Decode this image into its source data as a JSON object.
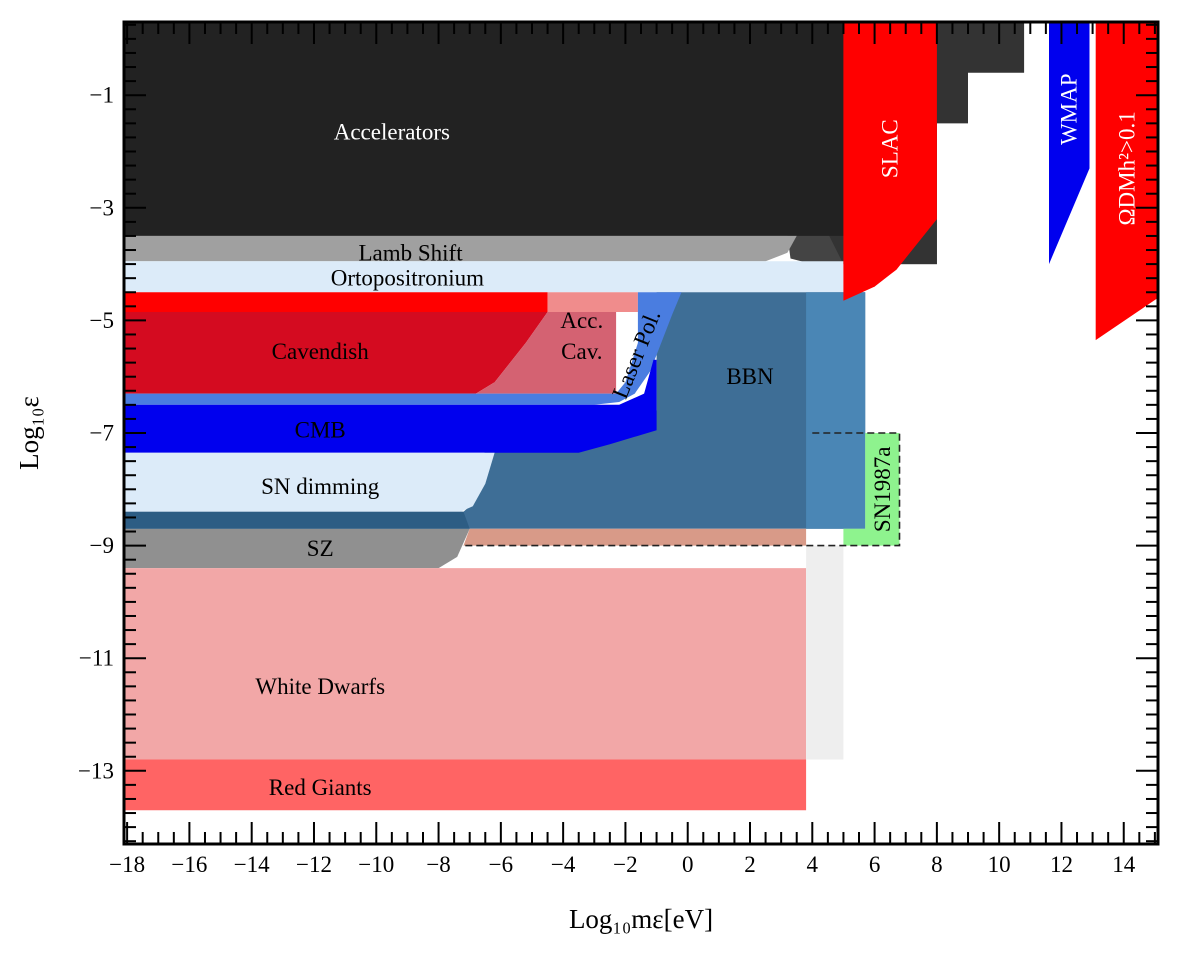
{
  "chart_data": {
    "type": "area",
    "title": "",
    "xlabel": "Log₁₀mε[eV]",
    "ylabel": "Log₁₀ε",
    "xlim": [
      -18.1,
      15.1
    ],
    "ylim": [
      -14.3,
      0.3
    ],
    "grid": false,
    "x_ticks": [
      {
        "value": -18,
        "label": "−18"
      },
      {
        "value": -16,
        "label": "−16"
      },
      {
        "value": -14,
        "label": "−14"
      },
      {
        "value": -12,
        "label": "−12"
      },
      {
        "value": -10,
        "label": "−10"
      },
      {
        "value": -8,
        "label": "−8"
      },
      {
        "value": -6,
        "label": "−6"
      },
      {
        "value": -4,
        "label": "−4"
      },
      {
        "value": -2,
        "label": "−2"
      },
      {
        "value": 0,
        "label": "0"
      },
      {
        "value": 2,
        "label": "2"
      },
      {
        "value": 4,
        "label": "4"
      },
      {
        "value": 6,
        "label": "6"
      },
      {
        "value": 8,
        "label": "8"
      },
      {
        "value": 10,
        "label": "10"
      },
      {
        "value": 12,
        "label": "12"
      },
      {
        "value": 14,
        "label": "14"
      }
    ],
    "y_ticks": [
      {
        "value": -1,
        "label": "−1"
      },
      {
        "value": -3,
        "label": "−3"
      },
      {
        "value": -5,
        "label": "−5"
      },
      {
        "value": -7,
        "label": "−7"
      },
      {
        "value": -9,
        "label": "−9"
      },
      {
        "value": -11,
        "label": "−11"
      },
      {
        "value": -13,
        "label": "−13"
      }
    ],
    "regions": [
      {
        "name": "Accelerators",
        "color": "#444444",
        "opacity": 1,
        "points": [
          [
            -18.1,
            0.3
          ],
          [
            9.0,
            0.3
          ],
          [
            9.0,
            -1.5
          ],
          [
            8.0,
            -1.5
          ],
          [
            8.0,
            -4.0
          ],
          [
            4.0,
            -4.0
          ],
          [
            3.3,
            -3.9
          ],
          [
            3.2,
            -3.5
          ],
          [
            -18.1,
            -3.5
          ]
        ]
      },
      {
        "name": "Accelerators",
        "color": "#333333",
        "opacity": 1,
        "points": [
          [
            -18.1,
            0.3
          ],
          [
            10.8,
            0.3
          ],
          [
            10.8,
            -0.6
          ],
          [
            9.0,
            -0.6
          ],
          [
            9.0,
            -1.5
          ],
          [
            8.0,
            -1.5
          ],
          [
            8.0,
            -4.0
          ],
          [
            5.0,
            -4.0
          ],
          [
            4.0,
            -2.9
          ],
          [
            3.7,
            -2.5
          ],
          [
            3.7,
            -2.0
          ],
          [
            -18.1,
            -2.0
          ]
        ]
      },
      {
        "name": "Accelerators",
        "color": "#222222",
        "opacity": 1,
        "points": [
          [
            -18.1,
            0.3
          ],
          [
            5.0,
            0.3
          ],
          [
            5.0,
            -3.5
          ],
          [
            -18.1,
            -3.5
          ]
        ]
      },
      {
        "name": "Lamb Shift",
        "color": "#a0a0a0",
        "opacity": 1,
        "points": [
          [
            -18.1,
            -3.5
          ],
          [
            3.5,
            -3.5
          ],
          [
            3.2,
            -3.8
          ],
          [
            2.5,
            -3.95
          ],
          [
            0,
            -3.95
          ],
          [
            -18.1,
            -3.95
          ]
        ]
      },
      {
        "name": "Ortopositronium",
        "color": "#dcebf9",
        "opacity": 1,
        "points": [
          [
            -18.1,
            -3.95
          ],
          [
            5.0,
            -3.95
          ],
          [
            5.0,
            -4.5
          ],
          [
            -18.1,
            -4.5
          ]
        ]
      },
      {
        "name": "BBN",
        "color": "#3e6e96",
        "opacity": 1,
        "points": [
          [
            -1.0,
            -4.5
          ],
          [
            5.7,
            -4.5
          ],
          [
            5.7,
            -8.7
          ],
          [
            -18.1,
            -8.7
          ],
          [
            -18.1,
            -8.4
          ],
          [
            -7.2,
            -8.4
          ],
          [
            -7.0,
            -8.3
          ],
          [
            -6.5,
            -7.3
          ],
          [
            -18.1,
            -7.3
          ],
          [
            -18.1,
            -6.6
          ],
          [
            -1.0,
            -6.6
          ]
        ]
      },
      {
        "name": "BBN",
        "color": "#4a86b5",
        "opacity": 1,
        "points": [
          [
            3.8,
            -4.5
          ],
          [
            5.7,
            -4.5
          ],
          [
            5.7,
            -8.7
          ],
          [
            3.8,
            -8.7
          ]
        ]
      },
      {
        "name": "Cavendish",
        "color": "#ff0000",
        "opacity": 1,
        "points": [
          [
            -18.1,
            -4.5
          ],
          [
            -4.5,
            -4.5
          ],
          [
            -4.5,
            -4.85
          ],
          [
            -18.1,
            -4.85
          ]
        ]
      },
      {
        "name": "Cavendish",
        "color": "#d40b20",
        "opacity": 1,
        "points": [
          [
            -18.1,
            -4.85
          ],
          [
            -4.5,
            -4.85
          ],
          [
            -5.2,
            -5.4
          ],
          [
            -6.2,
            -6.1
          ],
          [
            -6.8,
            -6.3
          ],
          [
            -18.1,
            -6.3
          ]
        ]
      },
      {
        "name": "Acc. Cav.",
        "color": "#d46272",
        "opacity": 1,
        "points": [
          [
            -4.5,
            -4.85
          ],
          [
            -2.3,
            -4.85
          ],
          [
            -2.3,
            -6.3
          ],
          [
            -6.8,
            -6.3
          ],
          [
            -6.2,
            -6.1
          ],
          [
            -5.2,
            -5.4
          ]
        ]
      },
      {
        "name": "Acc. Cav.",
        "color": "#f08c8c",
        "opacity": 1,
        "points": [
          [
            -4.5,
            -4.5
          ],
          [
            -1.6,
            -4.5
          ],
          [
            -1.6,
            -4.85
          ],
          [
            -4.5,
            -4.85
          ]
        ]
      },
      {
        "name": "Laser Pol.",
        "color": "#4a7de0",
        "opacity": 1,
        "points": [
          [
            -18.1,
            -6.3
          ],
          [
            -6.8,
            -6.3
          ],
          [
            -2.3,
            -6.3
          ],
          [
            -2.0,
            -6.1
          ],
          [
            -1.6,
            -5.4
          ],
          [
            -1.6,
            -4.5
          ],
          [
            -0.2,
            -4.5
          ],
          [
            -0.5,
            -4.9
          ],
          [
            -1.2,
            -5.9
          ],
          [
            -1.7,
            -6.3
          ],
          [
            -2.2,
            -6.45
          ],
          [
            -3.0,
            -6.5
          ],
          [
            -18.1,
            -6.5
          ]
        ]
      },
      {
        "name": "CMB",
        "color": "#0000ee",
        "opacity": 1,
        "points": [
          [
            -18.1,
            -6.5
          ],
          [
            -2.2,
            -6.5
          ],
          [
            -1.4,
            -6.3
          ],
          [
            -1.1,
            -5.7
          ],
          [
            -1.0,
            -5.7
          ],
          [
            -1.0,
            -6.95
          ],
          [
            -2.5,
            -7.2
          ],
          [
            -3.5,
            -7.35
          ],
          [
            -18.1,
            -7.35
          ]
        ]
      },
      {
        "name": "SN dimming",
        "color": "#dcebf9",
        "opacity": 1,
        "points": [
          [
            -18.1,
            -7.35
          ],
          [
            -6.2,
            -7.35
          ],
          [
            -6.5,
            -7.9
          ],
          [
            -6.9,
            -8.3
          ],
          [
            -7.3,
            -8.4
          ],
          [
            -18.1,
            -8.4
          ]
        ]
      },
      {
        "name": "SZ",
        "color": "#909090",
        "opacity": 1,
        "points": [
          [
            -18.1,
            -8.7
          ],
          [
            -7.0,
            -8.7
          ],
          [
            -7.4,
            -9.2
          ],
          [
            -8.0,
            -9.4
          ],
          [
            -18.1,
            -9.4
          ]
        ]
      },
      {
        "name": "SZ",
        "color": "#2d5d84",
        "opacity": 1,
        "points": [
          [
            -18.1,
            -8.4
          ],
          [
            -7.2,
            -8.4
          ],
          [
            -7.0,
            -8.7
          ],
          [
            -18.1,
            -8.7
          ]
        ]
      },
      {
        "name": "White Dwarfs",
        "color": "#f2a7a7",
        "opacity": 1,
        "points": [
          [
            -18.1,
            -9.4
          ],
          [
            3.8,
            -9.4
          ],
          [
            3.8,
            -12.8
          ],
          [
            -18.1,
            -12.8
          ]
        ]
      },
      {
        "name": "White Dwarfs",
        "color": "#d89a88",
        "opacity": 1,
        "points": [
          [
            -7.0,
            -8.7
          ],
          [
            3.8,
            -8.7
          ],
          [
            3.8,
            -9.0
          ],
          [
            -7.2,
            -9.0
          ]
        ]
      },
      {
        "name": "Red Giants",
        "color": "#ff6464",
        "opacity": 1,
        "points": [
          [
            -18.1,
            -12.8
          ],
          [
            3.8,
            -12.8
          ],
          [
            3.8,
            -13.7
          ],
          [
            -18.1,
            -13.7
          ]
        ]
      },
      {
        "name": "",
        "color": "#eeeeee",
        "opacity": 1,
        "points": [
          [
            3.8,
            -9.0
          ],
          [
            5.0,
            -9.0
          ],
          [
            5.0,
            -12.8
          ],
          [
            3.8,
            -12.8
          ]
        ]
      },
      {
        "name": "SN1987a",
        "color": "#8ef38e",
        "opacity": 1,
        "points": [
          [
            5.7,
            -7.0
          ],
          [
            6.8,
            -7.0
          ],
          [
            6.8,
            -9.0
          ],
          [
            5.0,
            -9.0
          ],
          [
            5.0,
            -8.7
          ],
          [
            5.7,
            -8.7
          ]
        ]
      },
      {
        "name": "SLAC",
        "color": "#ff0000",
        "opacity": 1,
        "points": [
          [
            5.0,
            0.3
          ],
          [
            8.0,
            0.3
          ],
          [
            8.0,
            -3.2
          ],
          [
            6.7,
            -4.1
          ],
          [
            6.0,
            -4.4
          ],
          [
            5.0,
            -4.65
          ]
        ]
      },
      {
        "name": "WMAP",
        "color": "#0000ee",
        "opacity": 1,
        "points": [
          [
            11.6,
            0.3
          ],
          [
            12.9,
            0.3
          ],
          [
            12.9,
            -2.3
          ],
          [
            11.6,
            -4.0
          ]
        ]
      },
      {
        "name": "ΩDMh²>0.1",
        "color": "#ff0000",
        "opacity": 1,
        "points": [
          [
            13.1,
            0.3
          ],
          [
            15.1,
            0.3
          ],
          [
            15.1,
            -4.6
          ],
          [
            13.1,
            -5.35
          ]
        ]
      }
    ],
    "boundaries": [
      {
        "name": "SN1987a",
        "style": "dashed",
        "points": [
          [
            4.0,
            -7.0
          ],
          [
            6.8,
            -7.0
          ],
          [
            6.8,
            -9.0
          ],
          [
            -7.2,
            -9.0
          ]
        ]
      }
    ],
    "labels": [
      {
        "id": "accelerators",
        "text": "Accelerators",
        "x": -9.5,
        "y": -1.65,
        "color": "#ffffff",
        "size": 23,
        "rotate": 0
      },
      {
        "id": "lamb-shift",
        "text": "Lamb Shift",
        "x": -8.9,
        "y": -3.8,
        "color": "#000000",
        "size": 17,
        "rotate": 0
      },
      {
        "id": "ortopositronium",
        "text": "Ortopositronium",
        "x": -9.0,
        "y": -4.25,
        "color": "#000000",
        "size": 23,
        "rotate": 0
      },
      {
        "id": "cavendish",
        "text": "Cavendish",
        "x": -11.8,
        "y": -5.55,
        "color": "#000000",
        "size": 23,
        "rotate": 0
      },
      {
        "id": "acc",
        "text": "Acc.",
        "x": -3.4,
        "y": -5.0,
        "color": "#000000",
        "size": 21,
        "rotate": 0
      },
      {
        "id": "cav",
        "text": "Cav.",
        "x": -3.4,
        "y": -5.55,
        "color": "#000000",
        "size": 21,
        "rotate": 0
      },
      {
        "id": "laser-pol",
        "text": "Laser Pol.",
        "x": -1.65,
        "y": -5.6,
        "color": "#000000",
        "size": 20,
        "rotate": -68
      },
      {
        "id": "bbn",
        "text": "BBN",
        "x": 2.0,
        "y": -6.0,
        "color": "#000000",
        "size": 23,
        "rotate": 0
      },
      {
        "id": "cmb",
        "text": "CMB",
        "x": -11.8,
        "y": -6.95,
        "color": "#000000",
        "size": 23,
        "rotate": 0
      },
      {
        "id": "sn-dimming",
        "text": "SN dimming",
        "x": -11.8,
        "y": -7.95,
        "color": "#000000",
        "size": 23,
        "rotate": 0
      },
      {
        "id": "sz",
        "text": "SZ",
        "x": -11.8,
        "y": -9.05,
        "color": "#000000",
        "size": 23,
        "rotate": 0
      },
      {
        "id": "white-dwarfs",
        "text": "White Dwarfs",
        "x": -11.8,
        "y": -11.5,
        "color": "#000000",
        "size": 23,
        "rotate": 0
      },
      {
        "id": "red-giants",
        "text": "Red Giants",
        "x": -11.8,
        "y": -13.3,
        "color": "#000000",
        "size": 23,
        "rotate": 0
      },
      {
        "id": "sn1987a",
        "text": "SN1987a",
        "x": 6.25,
        "y": -8.0,
        "color": "#000000",
        "size": 19,
        "rotate": -90
      },
      {
        "id": "slac",
        "text": "SLAC",
        "x": 6.5,
        "y": -1.95,
        "color": "#ffffff",
        "size": 23,
        "rotate": -90
      },
      {
        "id": "wmap",
        "text": "WMAP",
        "x": 12.25,
        "y": -1.25,
        "color": "#ffffff",
        "size": 17,
        "rotate": -90
      },
      {
        "id": "omega-dm",
        "text": "ΩDMh²>0.1",
        "x": 14.1,
        "y": -2.3,
        "color": "#ffffff",
        "size": 23,
        "rotate": -90
      }
    ]
  }
}
